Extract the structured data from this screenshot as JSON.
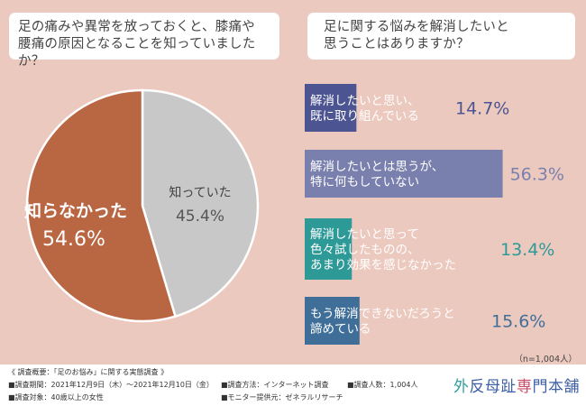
{
  "left_question": {
    "line1": "足の痛みや異常を放っておくと、膝痛や",
    "line2": "腰痛の原因となることを知っていましたか？"
  },
  "right_question": {
    "line1": "足に関する悩みを解消したいと",
    "line2": "思うことはありますか？"
  },
  "colors": {
    "background": "#ecc9bf",
    "pie_not_known": "#b96642",
    "pie_known": "#c8c8c8",
    "bar1": "#4c5492",
    "bar2": "#7a80ad",
    "bar3": "#2e9a98",
    "bar4": "#3f6f99"
  },
  "chart_data": [
    {
      "type": "pie",
      "slices": [
        {
          "label": "知っていた",
          "value": 45.4,
          "display": "45.4%"
        },
        {
          "label": "知らなかった",
          "value": 54.6,
          "display": "54.6%"
        }
      ]
    },
    {
      "type": "bar",
      "orientation": "horizontal",
      "categories": [
        [
          "解消したいと思い、",
          "既に取り組んでいる"
        ],
        [
          "解消したいとは思うが、",
          "特に何もしていない"
        ],
        [
          "解消したいと思って",
          "色々試したものの、",
          "あまり効果を感じなかった"
        ],
        [
          "もう解消できないだろうと",
          "諦めている"
        ]
      ],
      "values": [
        14.7,
        56.3,
        13.4,
        15.6
      ],
      "value_labels": [
        "14.7%",
        "56.3%",
        "13.4%",
        "15.6%"
      ]
    }
  ],
  "sample_note": "（n=1,004人）",
  "footer": {
    "overview": "《 調査概要：「足のお悩み」に関する実態調査 》",
    "period": "■調査期間：2021年12月9日（木）〜2021年12月10日（金）",
    "target": "■調査対象：40歳以上の女性",
    "method": "■調査方法：インターネット調査",
    "count": "■調査人数：1,004人",
    "provider": "■モニター提供元：ゼネラルリサーチ",
    "logo_first": "外",
    "logo_mid": "反母趾",
    "logo_mark": "専",
    "logo_last": "門本舗"
  }
}
